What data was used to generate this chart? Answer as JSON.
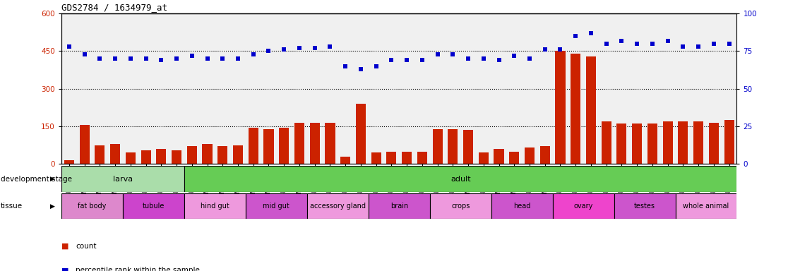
{
  "title": "GDS2784 / 1634979_at",
  "samples": [
    "GSM188092",
    "GSM188093",
    "GSM188094",
    "GSM188095",
    "GSM188100",
    "GSM188101",
    "GSM188102",
    "GSM188103",
    "GSM188072",
    "GSM188073",
    "GSM188074",
    "GSM188075",
    "GSM188076",
    "GSM188077",
    "GSM188078",
    "GSM188079",
    "GSM188080",
    "GSM188081",
    "GSM188082",
    "GSM188083",
    "GSM188084",
    "GSM188085",
    "GSM188086",
    "GSM188087",
    "GSM188088",
    "GSM188089",
    "GSM188090",
    "GSM188091",
    "GSM188096",
    "GSM188097",
    "GSM188098",
    "GSM188099",
    "GSM188104",
    "GSM188105",
    "GSM188106",
    "GSM188107",
    "GSM188108",
    "GSM188109",
    "GSM188110",
    "GSM188111",
    "GSM188112",
    "GSM188113",
    "GSM188114",
    "GSM188115"
  ],
  "counts": [
    15,
    155,
    75,
    80,
    45,
    55,
    60,
    55,
    70,
    80,
    70,
    75,
    145,
    140,
    145,
    165,
    165,
    165,
    30,
    240,
    45,
    50,
    50,
    50,
    140,
    140,
    135,
    45,
    60,
    50,
    65,
    70,
    450,
    440,
    430,
    170,
    160,
    160,
    160,
    170,
    170,
    170,
    165,
    175
  ],
  "percentiles": [
    78,
    73,
    70,
    70,
    70,
    70,
    69,
    70,
    72,
    70,
    70,
    70,
    73,
    75,
    76,
    77,
    77,
    78,
    65,
    63,
    65,
    69,
    69,
    69,
    73,
    73,
    70,
    70,
    69,
    72,
    70,
    76,
    76,
    85,
    87,
    80,
    82,
    80,
    80,
    82,
    78,
    78,
    80,
    80
  ],
  "ylim_left": [
    0,
    600
  ],
  "ylim_right": [
    0,
    100
  ],
  "yticks_left": [
    0,
    150,
    300,
    450,
    600
  ],
  "yticks_right": [
    0,
    25,
    50,
    75,
    100
  ],
  "bar_color": "#cc2200",
  "dot_color": "#0000cc",
  "bg_color": "#f0f0f0",
  "development_stages": [
    {
      "label": "larva",
      "start": 0,
      "end": 8,
      "color": "#aaddaa"
    },
    {
      "label": "adult",
      "start": 8,
      "end": 44,
      "color": "#66cc55"
    }
  ],
  "tissues": [
    {
      "label": "fat body",
      "start": 0,
      "end": 4,
      "color": "#dd88cc"
    },
    {
      "label": "tubule",
      "start": 4,
      "end": 8,
      "color": "#cc44cc"
    },
    {
      "label": "hind gut",
      "start": 8,
      "end": 12,
      "color": "#ee99dd"
    },
    {
      "label": "mid gut",
      "start": 12,
      "end": 16,
      "color": "#cc55cc"
    },
    {
      "label": "accessory gland",
      "start": 16,
      "end": 20,
      "color": "#ee99dd"
    },
    {
      "label": "brain",
      "start": 20,
      "end": 24,
      "color": "#cc55cc"
    },
    {
      "label": "crops",
      "start": 24,
      "end": 28,
      "color": "#ee99dd"
    },
    {
      "label": "head",
      "start": 28,
      "end": 32,
      "color": "#cc55cc"
    },
    {
      "label": "ovary",
      "start": 32,
      "end": 36,
      "color": "#ee44cc"
    },
    {
      "label": "testes",
      "start": 36,
      "end": 40,
      "color": "#cc55cc"
    },
    {
      "label": "whole animal",
      "start": 40,
      "end": 44,
      "color": "#ee99dd"
    }
  ],
  "legend_items": [
    {
      "label": "count",
      "color": "#cc2200"
    },
    {
      "label": "percentile rank within the sample",
      "color": "#0000cc"
    }
  ],
  "fig_width": 11.16,
  "fig_height": 3.84,
  "dpi": 100
}
